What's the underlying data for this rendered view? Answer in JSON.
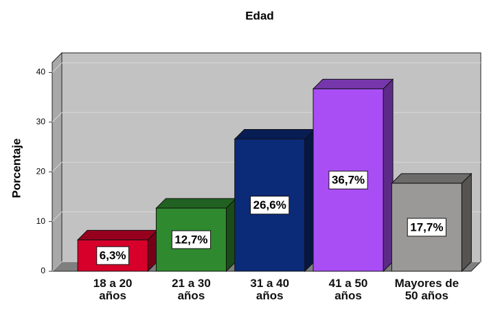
{
  "chart_data": {
    "type": "bar3d",
    "title": "Edad",
    "y_label": "Porcentaje",
    "categories": [
      "18 a 20 años",
      "21 a 30 años",
      "31 a 40 años",
      "41 a 50 años",
      "Mayores de 50 años"
    ],
    "values": [
      6.3,
      12.7,
      26.6,
      36.7,
      17.7
    ],
    "value_labels": [
      "6,3%",
      "12,7%",
      "26,6%",
      "36,7%",
      "17,7%"
    ],
    "colors": [
      "#d6002b",
      "#2f8a2f",
      "#0b2a78",
      "#a94ef5",
      "#9b9997"
    ],
    "ylim": [
      0,
      42
    ],
    "yticks": [
      0,
      10,
      20,
      30,
      40
    ],
    "grid": true
  }
}
